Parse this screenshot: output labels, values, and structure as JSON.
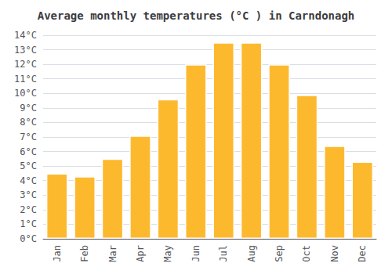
{
  "chart_data": {
    "type": "bar",
    "title": "Average monthly temperatures (°C ) in Carndonagh",
    "categories": [
      "Jan",
      "Feb",
      "Mar",
      "Apr",
      "May",
      "Jun",
      "Jul",
      "Aug",
      "Sep",
      "Oct",
      "Nov",
      "Dec"
    ],
    "values": [
      4.5,
      4.3,
      5.5,
      7.1,
      9.6,
      12.0,
      13.5,
      13.5,
      12.0,
      9.9,
      6.4,
      5.3
    ],
    "color": "#FDB92E",
    "ylim": [
      0,
      14
    ],
    "yticks": [
      {
        "value": 0,
        "label": "0°C"
      },
      {
        "value": 1,
        "label": "1°C"
      },
      {
        "value": 2,
        "label": "2°C"
      },
      {
        "value": 3,
        "label": "3°C"
      },
      {
        "value": 4,
        "label": "4°C"
      },
      {
        "value": 5,
        "label": "5°C"
      },
      {
        "value": 6,
        "label": "6°C"
      },
      {
        "value": 7,
        "label": "7°C"
      },
      {
        "value": 8,
        "label": "8°C"
      },
      {
        "value": 9,
        "label": "9°C"
      },
      {
        "value": 10,
        "label": "10°C"
      },
      {
        "value": 11,
        "label": "11°C"
      },
      {
        "value": 12,
        "label": "12°C"
      },
      {
        "value": 13,
        "label": "13°C"
      },
      {
        "value": 14,
        "label": "14°C"
      }
    ],
    "grid": true
  }
}
